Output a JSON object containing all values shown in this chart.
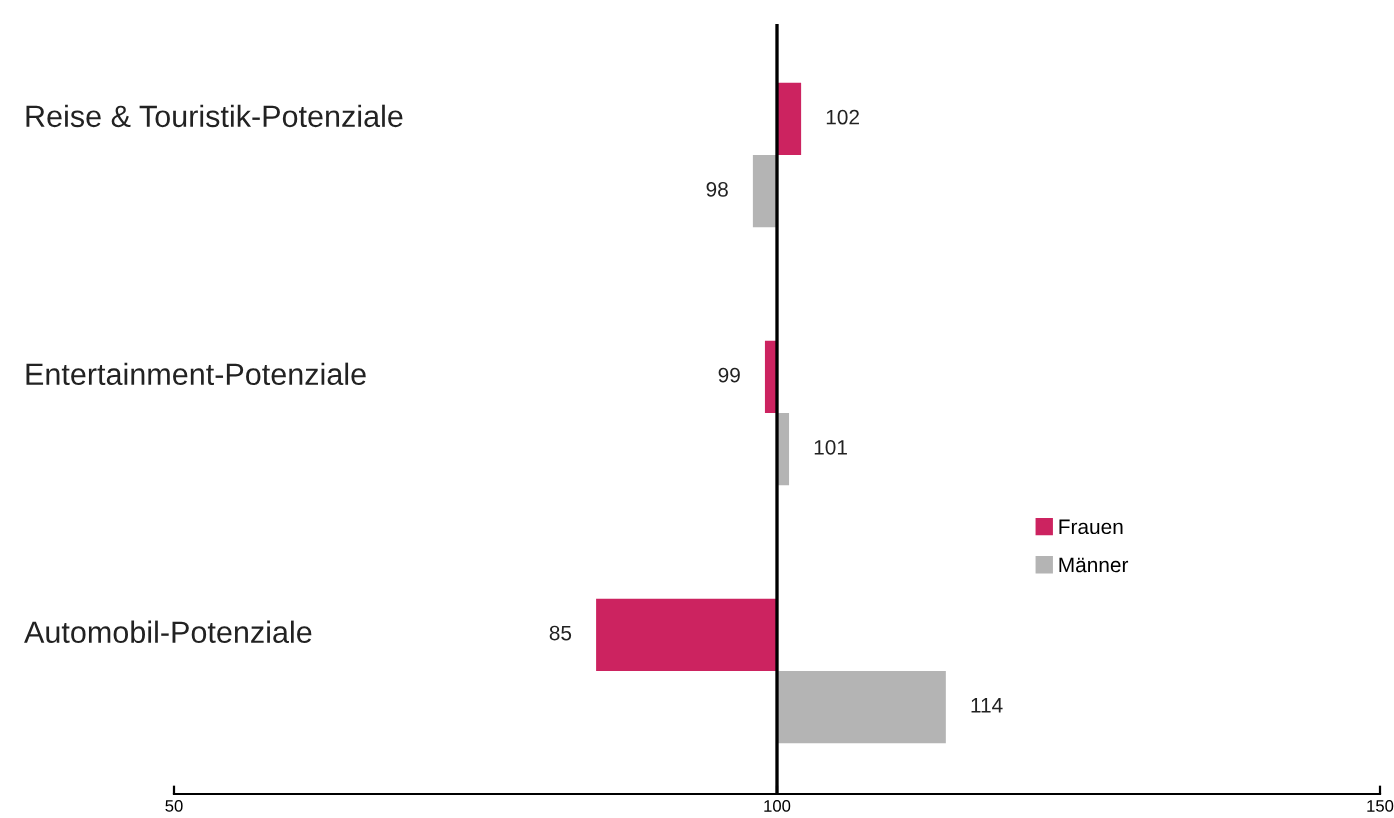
{
  "chart_data": {
    "type": "bar",
    "orientation": "horizontal",
    "categories": [
      "Reise & Touristik-Potenziale",
      "Entertainment-Potenziale",
      "Automobil-Potenziale"
    ],
    "series": [
      {
        "name": "Frauen",
        "color": "#cc2360",
        "base": [
          100,
          100,
          100
        ],
        "values": [
          2,
          -1,
          -15
        ],
        "value_labels": [
          "102",
          "99",
          "85"
        ]
      },
      {
        "name": "Männer",
        "color": "#b4b4b4",
        "base": [
          100,
          100,
          100
        ],
        "values": [
          -2,
          1,
          14
        ],
        "value_labels": [
          "98",
          "101",
          "114"
        ]
      }
    ],
    "xlim": [
      50,
      150
    ],
    "xticks": [
      50,
      100,
      150
    ],
    "ref_lines": [
      {
        "axis": "x",
        "value": 100,
        "color": "#000000"
      }
    ],
    "legend": "right",
    "grid": false
  }
}
